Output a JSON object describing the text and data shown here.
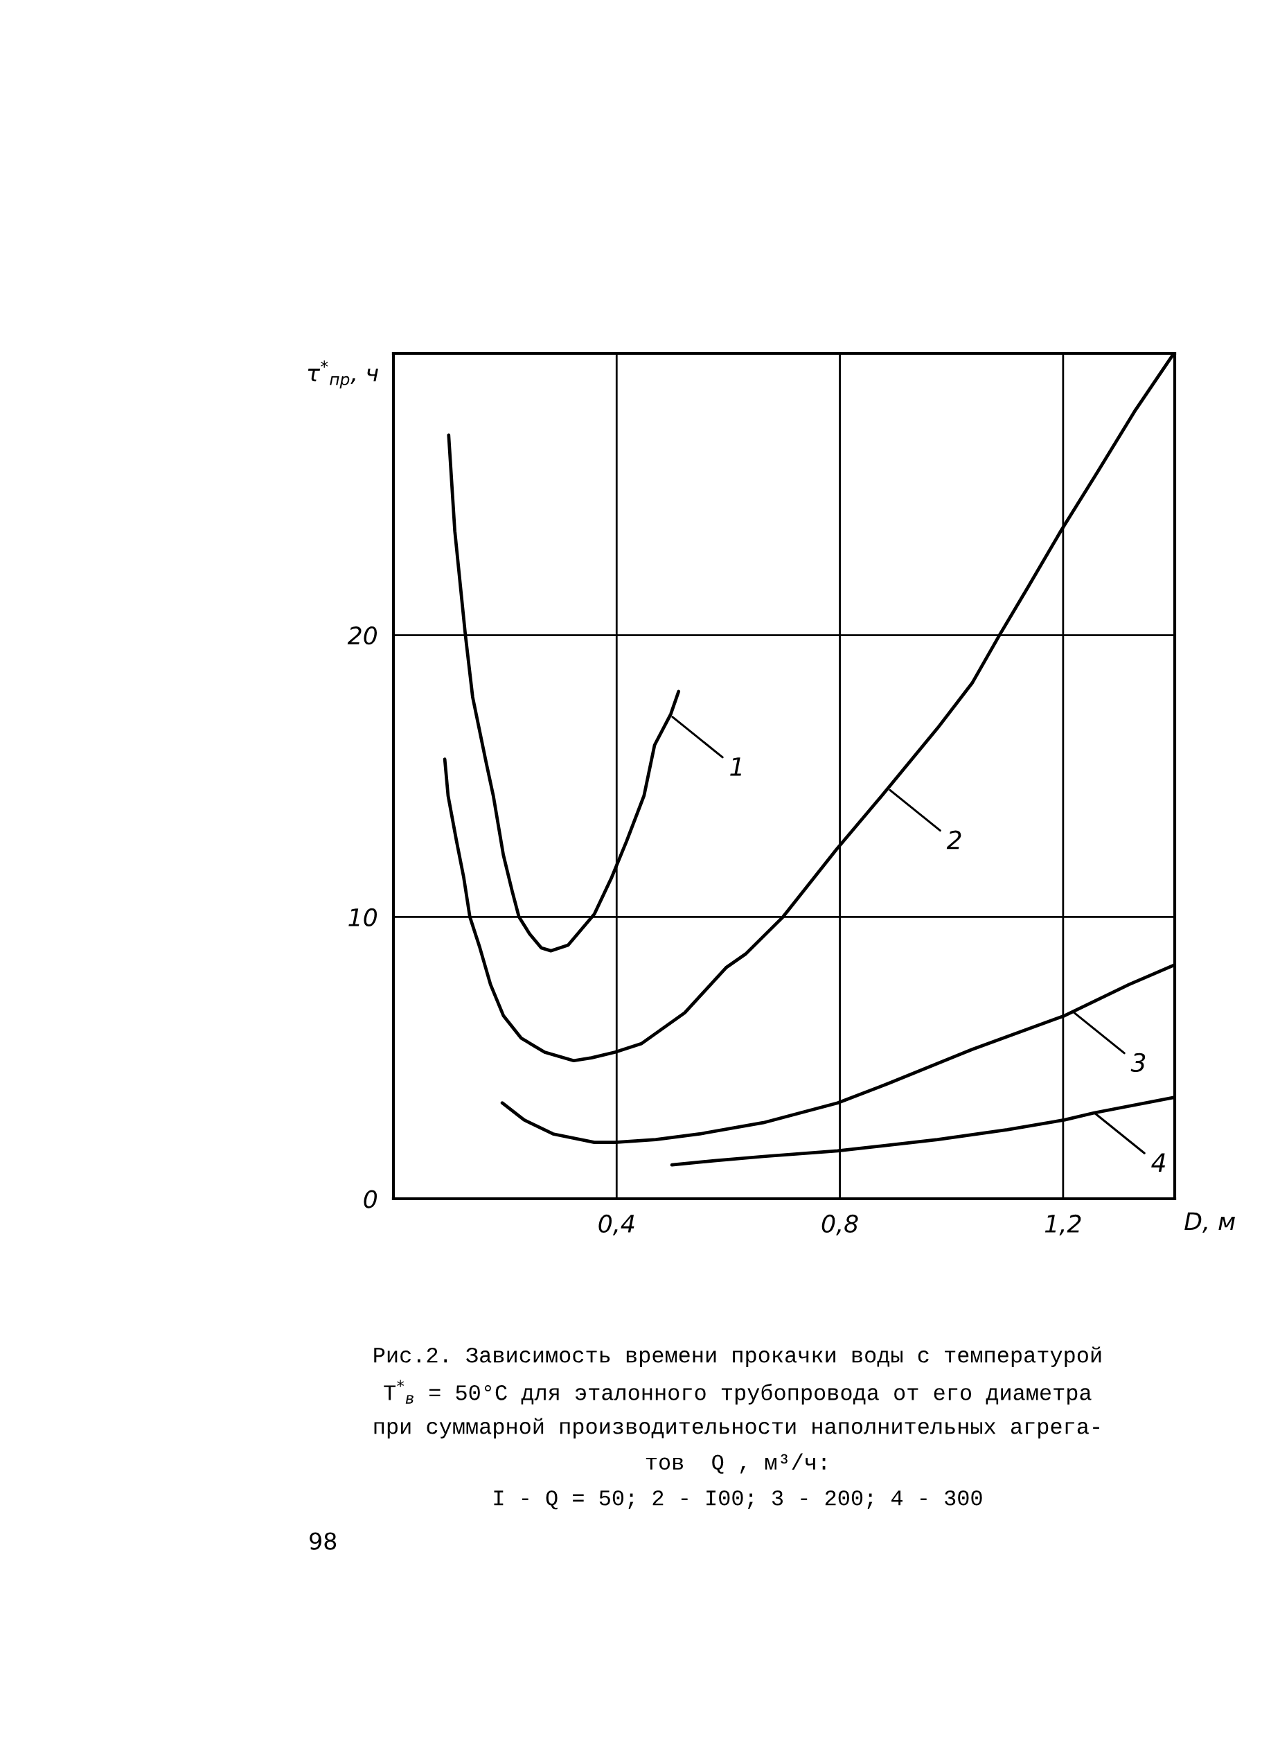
{
  "chart_data": {
    "type": "line",
    "xlabel": "D, м",
    "ylabel": "τ$^{*}$$_{пр}$, ч",
    "xlim": [
      0,
      1.4
    ],
    "ylim": [
      0,
      30
    ],
    "xticks": [
      {
        "value": 0.4,
        "label": "0,4"
      },
      {
        "value": 0.8,
        "label": "0,8"
      },
      {
        "value": 1.2,
        "label": "1,2"
      }
    ],
    "yticks": [
      0,
      10,
      20
    ],
    "grid": true,
    "line_style": "solid",
    "series": [
      {
        "color": "#000000",
        "x": [
          0.099,
          0.11,
          0.129,
          0.142,
          0.166,
          0.179,
          0.197,
          0.213,
          0.225,
          0.244,
          0.265,
          0.282,
          0.313,
          0.36,
          0.391,
          0.418,
          0.449,
          0.468,
          0.497,
          0.511
        ],
        "values": [
          27.1,
          23.7,
          20.0,
          17.8,
          15.5,
          14.3,
          12.2,
          10.9,
          10.0,
          9.4,
          8.9,
          8.8,
          9.0,
          10.1,
          11.4,
          12.7,
          14.3,
          16.1,
          17.2,
          18.0
        ]
      },
      {
        "color": "#000000",
        "x": [
          0.092,
          0.098,
          0.113,
          0.126,
          0.137,
          0.155,
          0.174,
          0.197,
          0.229,
          0.271,
          0.323,
          0.355,
          0.397,
          0.444,
          0.522,
          0.596,
          0.632,
          0.698,
          0.794,
          0.875,
          0.975,
          1.037,
          1.086,
          1.137,
          1.196,
          1.262,
          1.33,
          1.395
        ],
        "values": [
          15.6,
          14.3,
          12.7,
          11.4,
          10.0,
          8.9,
          7.6,
          6.5,
          5.7,
          5.2,
          4.9,
          5.0,
          5.2,
          5.5,
          6.6,
          8.2,
          8.7,
          10.0,
          12.4,
          14.3,
          16.7,
          18.3,
          20.0,
          21.7,
          23.7,
          25.8,
          28.0,
          29.9
        ]
      },
      {
        "color": "#000000",
        "x": [
          0.195,
          0.234,
          0.286,
          0.36,
          0.397,
          0.47,
          0.549,
          0.663,
          0.796,
          0.888,
          1.037,
          1.203,
          1.318,
          1.4
        ],
        "values": [
          3.4,
          2.8,
          2.3,
          2.0,
          2.0,
          2.1,
          2.3,
          2.7,
          3.4,
          4.1,
          5.3,
          6.5,
          7.6,
          8.3
        ]
      },
      {
        "color": "#000000",
        "x": [
          0.499,
          0.575,
          0.663,
          0.796,
          0.975,
          1.1,
          1.203,
          1.256,
          1.4
        ],
        "values": [
          1.2,
          1.35,
          1.5,
          1.7,
          2.1,
          2.45,
          2.8,
          3.05,
          3.6
        ]
      }
    ],
    "annotations": [
      {
        "text": "1",
        "x": 0.5,
        "y": 17.1
      },
      {
        "text": "2",
        "x": 0.89,
        "y": 14.5
      },
      {
        "text": "3",
        "x": 1.22,
        "y": 6.6
      },
      {
        "text": "4",
        "x": 1.256,
        "y": 3.05
      },
      "Рис.2. Зависимость времени прокачки воды с температурой",
      "T$^{*}$$_{в}$ = 50°C для эталонного трубопровода от его диаметра",
      "при суммарной производительности наполнительных агрега-",
      "тов  Q , м³/ч:",
      "I - Q = 50; 2 - I00; 3 - 200; 4 - 300",
      "98"
    ]
  }
}
